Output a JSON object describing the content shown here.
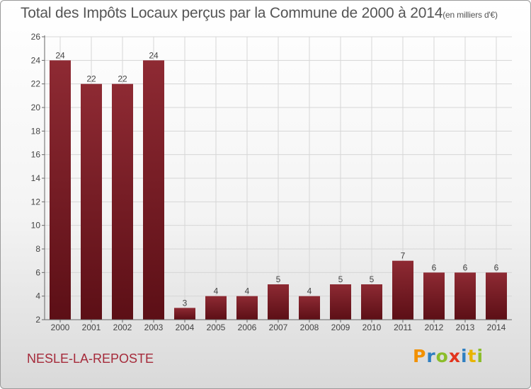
{
  "header": {
    "title": "Total des Impôts Locaux perçus par la Commune de 2000 à 2014",
    "unit": "(en milliers d'€)"
  },
  "footer": {
    "commune": "NESLE-LA-REPOSTE",
    "brand_letters": [
      "P",
      "r",
      "o",
      "x",
      "i",
      "t",
      "i"
    ],
    "brand_colors": [
      "#f29100",
      "#2f7fc1",
      "#8bbd2a",
      "#e2341d",
      "#2f7fc1",
      "#e8b400",
      "#8bbd2a"
    ]
  },
  "colors": {
    "bar_top": "#8e2a33",
    "bar_bottom": "#5c0f16",
    "text": "#555555",
    "accent": "#a52a3a"
  },
  "chart_data": {
    "type": "bar",
    "categories": [
      "2000",
      "2001",
      "2002",
      "2003",
      "2004",
      "2005",
      "2006",
      "2007",
      "2008",
      "2009",
      "2010",
      "2011",
      "2012",
      "2013",
      "2014"
    ],
    "values": [
      24,
      22,
      22,
      24,
      3,
      4,
      4,
      5,
      4,
      5,
      5,
      7,
      6,
      6,
      6
    ],
    "title": "Total des Impôts Locaux perçus par la Commune de 2000 à 2014",
    "xlabel": "",
    "ylabel": "",
    "ylim": [
      2,
      26
    ],
    "yticks": [
      2,
      4,
      6,
      8,
      10,
      12,
      14,
      16,
      18,
      20,
      22,
      24,
      26
    ],
    "grid": true
  }
}
